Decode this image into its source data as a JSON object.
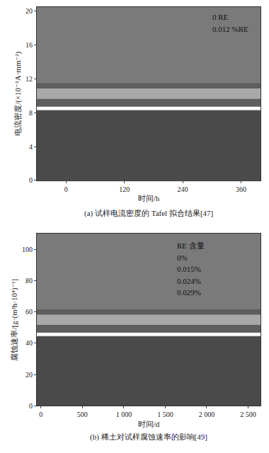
{
  "chart_data": [
    {
      "type": "line",
      "title": "(a) 试样电流密度的 Tafel 拟合结果[47]",
      "x_label": "时间/h",
      "y_label": "电流密度/(×10⁻⁵A·mm⁻²)",
      "annotations": [
        "0 RE",
        "0.012 %RE"
      ],
      "xlim": [
        -60,
        400
      ],
      "xticks": [
        0,
        120,
        240,
        360
      ],
      "ylim": [
        0,
        20.5
      ],
      "yticks": [
        0,
        4,
        8,
        12,
        16,
        20
      ],
      "grid": false
    },
    {
      "type": "line",
      "title": "(b) 稀土对试样腐蚀速率的影响[49]",
      "x_label": "时间/d",
      "y_label": "腐蚀速率/[g·(m²h·10⁴)⁻¹]",
      "annotations": [
        "RE 含量",
        "0%",
        "0.015%",
        "0.024%",
        "0.029%"
      ],
      "xlim": [
        -50,
        2650
      ],
      "xticks": [
        0,
        500,
        {
          "value": 1000,
          "label": "1 000"
        },
        {
          "value": 1500,
          "label": "1 500"
        },
        {
          "value": 2000,
          "label": "2 000"
        },
        {
          "value": 2500,
          "label": "2 500"
        }
      ],
      "ylim": [
        0,
        110
      ],
      "yticks": [
        0,
        20,
        40,
        60,
        80,
        100
      ],
      "grid": false
    }
  ]
}
